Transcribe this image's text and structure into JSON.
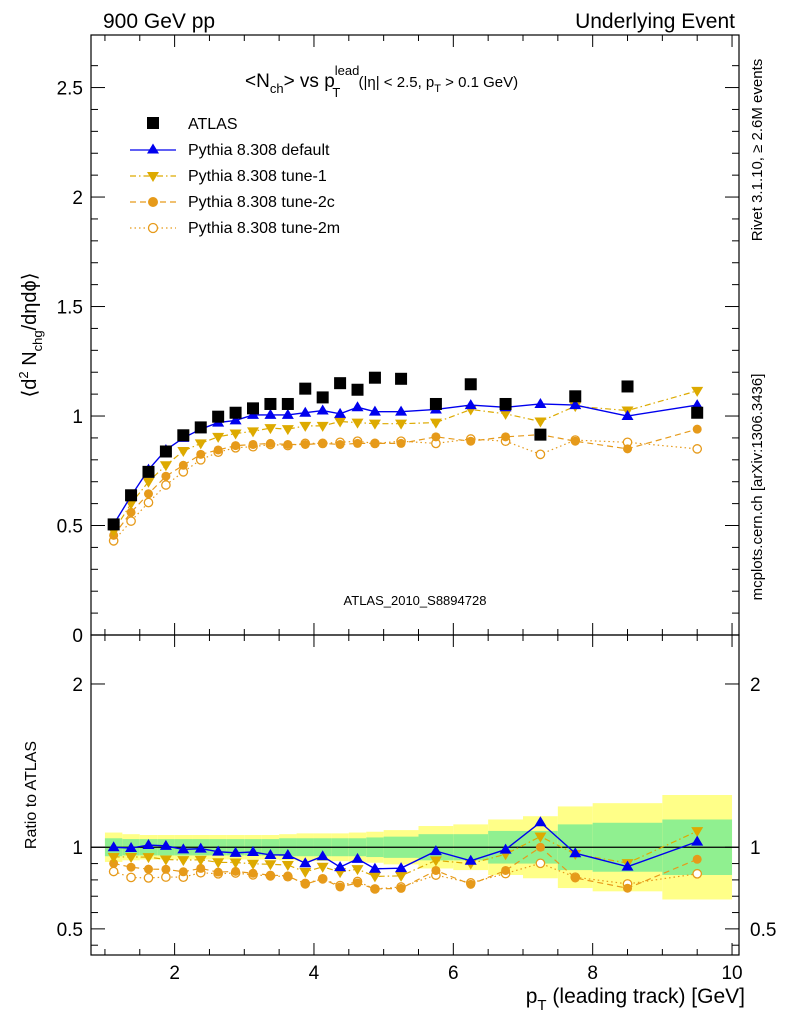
{
  "header": {
    "left": "900 GeV pp",
    "right": "Underlying Event"
  },
  "side": {
    "rivet": "Rivet 3.1.10, ≥ 2.6M events",
    "mcplots": "mcplots.cern.ch [arXiv:1306.3436]"
  },
  "chart_data": {
    "type": "scatter",
    "title_parts": [
      "<N",
      "ch",
      "> vs p",
      "lead",
      "T",
      " (|η| < 2.5, p",
      "T",
      " > 0.1 GeV)"
    ],
    "watermark": "ATLAS_2010_S8894728",
    "xlabel_parts": [
      "p",
      "T",
      " (leading track) [GeV]"
    ],
    "ylabel_parts": [
      "⟨d",
      "2",
      " N",
      "chg",
      "/dηdϕ⟩"
    ],
    "ratio_ylabel": "Ratio to ATLAS",
    "xlim": [
      0.8,
      10.1
    ],
    "main_ylim": [
      0,
      2.74
    ],
    "ratio_ylim": [
      0.34,
      2.3
    ],
    "x_ticks": [
      "2",
      "4",
      "6",
      "8",
      "10"
    ],
    "main_y_ticks": [
      "0",
      "0.5",
      "1",
      "1.5",
      "2",
      "2.5"
    ],
    "ratio_y_ticks": [
      "0.5",
      "1",
      "2"
    ],
    "x": [
      1.125,
      1.375,
      1.625,
      1.875,
      2.125,
      2.375,
      2.625,
      2.875,
      3.125,
      3.375,
      3.625,
      3.875,
      4.125,
      4.375,
      4.625,
      4.875,
      5.25,
      5.75,
      6.25,
      6.75,
      7.25,
      7.75,
      8.5,
      9.5
    ],
    "band_edges": [
      1.0,
      1.25,
      1.5,
      1.75,
      2.0,
      2.25,
      2.5,
      2.75,
      3.0,
      3.25,
      3.5,
      3.75,
      4.0,
      4.25,
      4.5,
      4.75,
      5.0,
      5.5,
      6.0,
      6.5,
      7.0,
      7.5,
      8.0,
      9.0,
      10.0
    ],
    "data_series": {
      "name": "ATLAS",
      "color": "#000000",
      "values": [
        0.505,
        0.638,
        0.745,
        0.838,
        0.912,
        0.948,
        0.997,
        1.015,
        1.035,
        1.055,
        1.055,
        1.125,
        1.085,
        1.15,
        1.12,
        1.175,
        1.17,
        1.055,
        1.145,
        1.055,
        0.915,
        1.09,
        1.135,
        1.015
      ]
    },
    "series": [
      {
        "name": "Pythia 8.308 default",
        "color": "#0000ee",
        "marker": "triangle-up",
        "line": "solid",
        "values": [
          0.505,
          0.635,
          0.755,
          0.845,
          0.9,
          0.94,
          0.97,
          0.98,
          1.005,
          1.005,
          1.005,
          1.015,
          1.025,
          1.01,
          1.04,
          1.02,
          1.02,
          1.03,
          1.05,
          1.04,
          1.055,
          1.05,
          1.0,
          1.05
        ]
      },
      {
        "name": "Pythia 8.308 tune-1",
        "color": "#ddaa00",
        "marker": "triangle-down",
        "line": "dashdot",
        "values": [
          0.475,
          0.6,
          0.7,
          0.775,
          0.84,
          0.875,
          0.905,
          0.92,
          0.93,
          0.945,
          0.94,
          0.955,
          0.955,
          0.975,
          0.97,
          0.965,
          0.965,
          0.97,
          1.03,
          1.01,
          0.975,
          1.045,
          1.025,
          1.115
        ]
      },
      {
        "name": "Pythia 8.308 tune-2c",
        "color": "#e69a1a",
        "marker": "filled-circle",
        "line": "dashed",
        "values": [
          0.455,
          0.56,
          0.645,
          0.725,
          0.775,
          0.825,
          0.845,
          0.865,
          0.87,
          0.875,
          0.87,
          0.87,
          0.875,
          0.87,
          0.875,
          0.875,
          0.875,
          0.905,
          0.885,
          0.905,
          0.915,
          0.885,
          0.85,
          0.94
        ]
      },
      {
        "name": "Pythia 8.308 tune-2m",
        "color": "#e69a1a",
        "marker": "open-circle",
        "line": "dotted",
        "values": [
          0.43,
          0.52,
          0.605,
          0.685,
          0.745,
          0.8,
          0.835,
          0.855,
          0.86,
          0.87,
          0.865,
          0.875,
          0.875,
          0.88,
          0.885,
          0.875,
          0.885,
          0.875,
          0.895,
          0.885,
          0.825,
          0.89,
          0.88,
          0.85
        ]
      }
    ],
    "ratio_band_inner": [
      0.055,
      0.05,
      0.05,
      0.05,
      0.05,
      0.05,
      0.05,
      0.05,
      0.05,
      0.05,
      0.055,
      0.055,
      0.055,
      0.055,
      0.055,
      0.06,
      0.065,
      0.08,
      0.08,
      0.1,
      0.1,
      0.14,
      0.15,
      0.17
    ],
    "ratio_band_outer": [
      0.09,
      0.08,
      0.075,
      0.075,
      0.075,
      0.075,
      0.075,
      0.075,
      0.075,
      0.075,
      0.08,
      0.085,
      0.085,
      0.085,
      0.09,
      0.095,
      0.105,
      0.13,
      0.14,
      0.17,
      0.19,
      0.25,
      0.27,
      0.32
    ]
  }
}
